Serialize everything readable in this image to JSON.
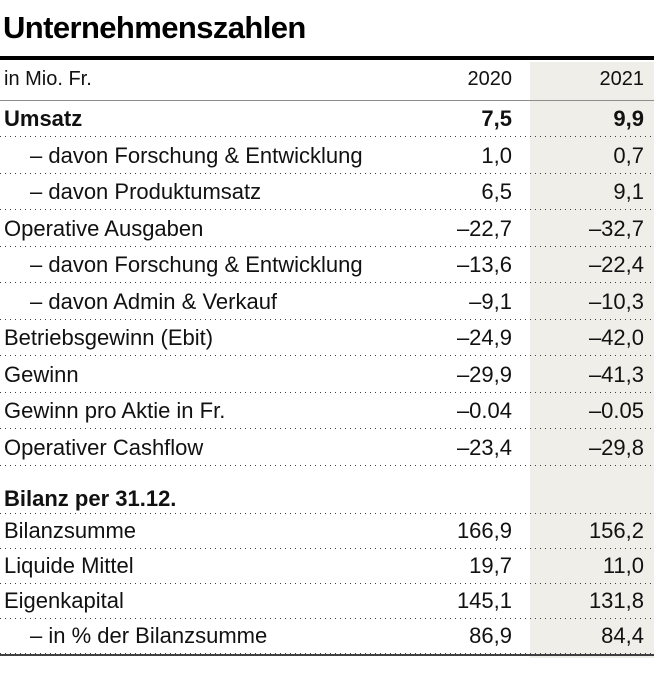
{
  "title": "Unternehmenszahlen",
  "header": {
    "unit_label": "in Mio. Fr.",
    "col_2020": "2020",
    "col_2021": "2021"
  },
  "colors": {
    "highlight_column_bg": "#efeee8",
    "title_rule": "#000000",
    "header_rule": "#8c8c8c",
    "dotted_separator": "#3d3d3d",
    "bottom_rule": "#3f3f3f",
    "text": "#111111"
  },
  "chart_data": {
    "type": "table",
    "title": "Unternehmenszahlen",
    "unit_label": "in Mio. Fr.",
    "columns": [
      "2020",
      "2021"
    ],
    "highlighted_column": "2021",
    "rows": [
      {
        "label": "Umsatz",
        "v2020": "7,5",
        "v2021": "9,9",
        "style": "bold"
      },
      {
        "label": "– davon Forschung & Entwicklung",
        "v2020": "1,0",
        "v2021": "0,7",
        "style": "indent"
      },
      {
        "label": "– davon Produktumsatz",
        "v2020": "6,5",
        "v2021": "9,1",
        "style": "indent"
      },
      {
        "label": "Operative Ausgaben",
        "v2020": "–22,7",
        "v2021": "–32,7",
        "style": "normal"
      },
      {
        "label": "– davon Forschung & Entwicklung",
        "v2020": "–13,6",
        "v2021": "–22,4",
        "style": "indent"
      },
      {
        "label": "– davon Admin & Verkauf",
        "v2020": "–9,1",
        "v2021": "–10,3",
        "style": "indent"
      },
      {
        "label": "Betriebsgewinn (Ebit)",
        "v2020": "–24,9",
        "v2021": "–42,0",
        "style": "normal"
      },
      {
        "label": "Gewinn",
        "v2020": "–29,9",
        "v2021": "–41,3",
        "style": "normal"
      },
      {
        "label": "Gewinn pro Aktie in Fr.",
        "v2020": "–0.04",
        "v2021": "–0.05",
        "style": "normal"
      },
      {
        "label": "Operativer Cashflow",
        "v2020": "–23,4",
        "v2021": "–29,8",
        "style": "normal"
      },
      {
        "label": "",
        "v2020": "",
        "v2021": "",
        "style": "spacer"
      },
      {
        "label": "Bilanz per 31.12.",
        "v2020": "",
        "v2021": "",
        "style": "section"
      },
      {
        "label": "Bilanzsumme",
        "v2020": "166,9",
        "v2021": "156,2",
        "style": "tail"
      },
      {
        "label": "Liquide Mittel",
        "v2020": "19,7",
        "v2021": "11,0",
        "style": "tail"
      },
      {
        "label": "Eigenkapital",
        "v2020": "145,1",
        "v2021": "131,8",
        "style": "tail"
      },
      {
        "label": "– in % der Bilanzsumme",
        "v2020": "86,9",
        "v2021": "84,4",
        "style": "tail-indent"
      }
    ]
  }
}
